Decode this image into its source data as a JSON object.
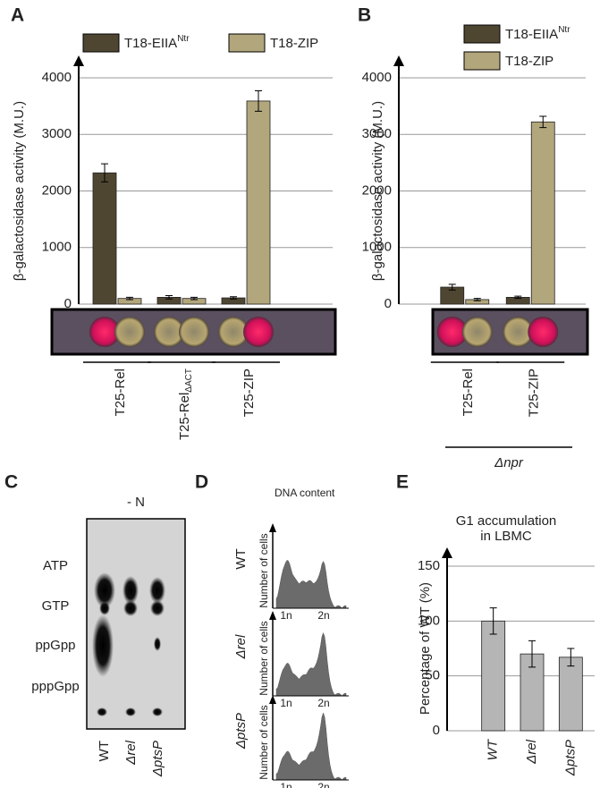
{
  "chart_data": [
    {
      "panel": "A",
      "type": "bar",
      "y_label": "β-galactosidase activity (M.U.)",
      "categories": [
        "T25-Rel",
        "T25-Rel",
        "T25-ZIP"
      ],
      "category_subscripts": [
        null,
        "ΔACT",
        null
      ],
      "series": [
        {
          "name": "T18-EIIA",
          "name_superscript": "Ntr",
          "color": "#4f4632",
          "values": [
            2320,
            120,
            110
          ],
          "errors": [
            160,
            30,
            20
          ]
        },
        {
          "name": "T18-ZIP",
          "color": "#b2a67c",
          "values": [
            100,
            100,
            3590
          ],
          "errors": [
            20,
            20,
            180
          ]
        }
      ],
      "ylim": [
        0,
        4000
      ],
      "yticks": [
        0,
        1000,
        2000,
        3000,
        4000
      ],
      "grid": true
    },
    {
      "panel": "B",
      "type": "bar",
      "y_label": "β-galactosidase activity (M.U.)",
      "categories": [
        "T25-Rel",
        "T25-ZIP"
      ],
      "group_label": "Δnpr",
      "series": [
        {
          "name": "T18-EIIA",
          "name_superscript": "Ntr",
          "color": "#4f4632",
          "values": [
            300,
            120
          ],
          "errors": [
            50,
            20
          ]
        },
        {
          "name": "T18-ZIP",
          "color": "#b2a67c",
          "values": [
            80,
            3220
          ],
          "errors": [
            20,
            100
          ]
        }
      ],
      "ylim": [
        0,
        4000
      ],
      "yticks": [
        0,
        1000,
        2000,
        3000,
        4000
      ],
      "grid": true
    },
    {
      "panel": "E",
      "type": "bar",
      "title": [
        "G1 accumulation",
        "in LBMC"
      ],
      "y_label": "Percentage of WT (%)",
      "categories": [
        "WT",
        "Δrel",
        "ΔptsP"
      ],
      "series": [
        {
          "color": "#b5b5b5",
          "values": [
            100,
            70,
            67
          ],
          "errors": [
            12,
            12,
            8
          ]
        }
      ],
      "ylim": [
        0,
        150
      ],
      "yticks": [
        0,
        50,
        100,
        150
      ],
      "grid": true
    }
  ],
  "panel_c": {
    "letter": "C",
    "condition": "- N",
    "spots": [
      "ATP",
      "GTP",
      "ppGpp",
      "pppGpp"
    ],
    "lanes": [
      "WT",
      "Δrel",
      "ΔptsP"
    ]
  },
  "panel_d": {
    "letter": "D",
    "axis_title": "DNA content",
    "strains": [
      "WT",
      "Δrel",
      "ΔptsP"
    ],
    "y_label": "Number of cells",
    "x_ticks": [
      "1n",
      "2n"
    ]
  }
}
